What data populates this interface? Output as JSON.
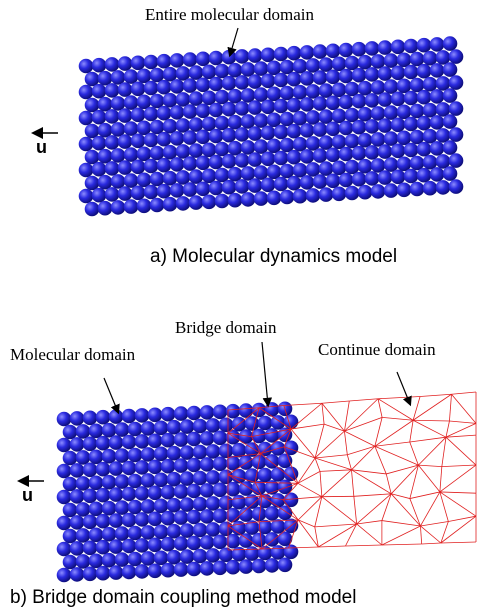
{
  "top": {
    "label": "Entire molecular domain",
    "force": "u",
    "caption": "a) Molecular dynamics model"
  },
  "bottom": {
    "bridge_label": "Bridge domain",
    "molecular_label": "Molecular domain",
    "continue_label": "Continue domain",
    "force": "u",
    "caption": "b) Bridge domain coupling method model"
  }
}
